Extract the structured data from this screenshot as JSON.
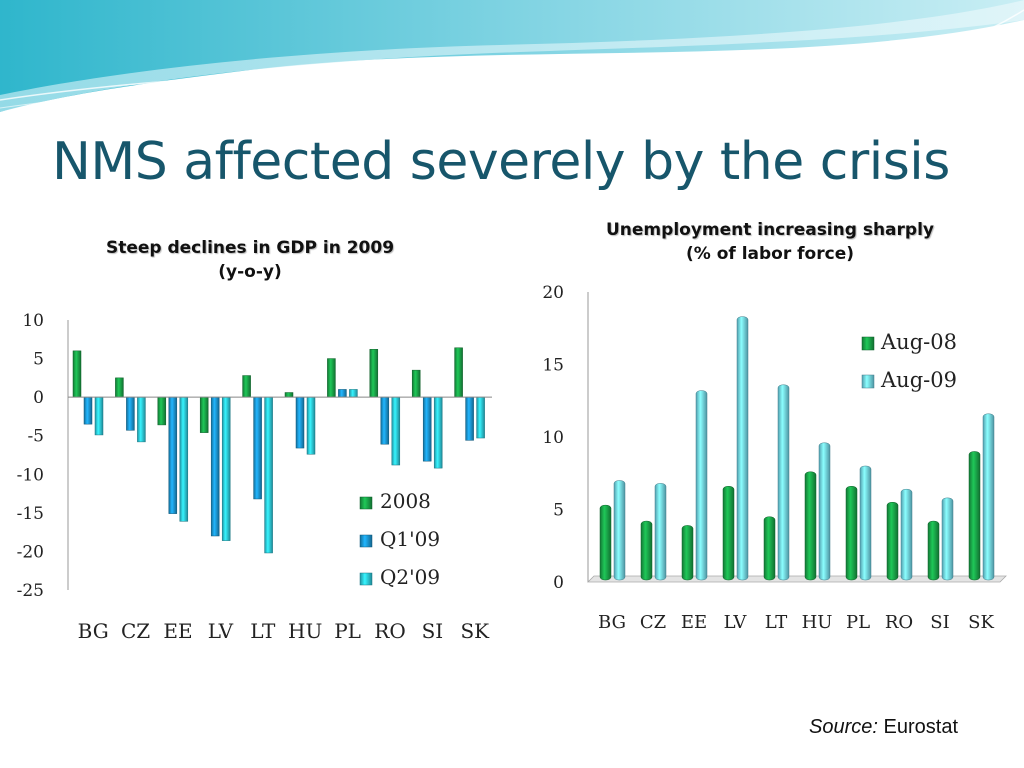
{
  "slide": {
    "title": "NMS affected severely by the crisis",
    "source_label": "Source:",
    "source_value": "Eurostat"
  },
  "colors": {
    "title": "#17566b",
    "green": "#19a046",
    "blue": "#1b92cc",
    "cyan": "#2cc4d8",
    "light_cyan": "#6fd4e8"
  },
  "chart_data": [
    {
      "type": "bar",
      "title": "Steep declines in GDP in 2009",
      "subtitle": "(y-o-y)",
      "categories": [
        "BG",
        "CZ",
        "EE",
        "LV",
        "LT",
        "HU",
        "PL",
        "RO",
        "SI",
        "SK"
      ],
      "series": [
        {
          "name": "2008",
          "color": "#19a046",
          "values": [
            6.0,
            2.5,
            -3.6,
            -4.6,
            2.8,
            0.6,
            5.0,
            6.2,
            3.5,
            6.4
          ]
        },
        {
          "name": "Q1'09",
          "color": "#1b92cc",
          "values": [
            -3.5,
            -4.3,
            -15.1,
            -18.0,
            -13.2,
            -6.6,
            1.0,
            -6.1,
            -8.3,
            -5.6
          ]
        },
        {
          "name": "Q2'09",
          "color": "#2cc4d8",
          "values": [
            -4.9,
            -5.8,
            -16.1,
            -18.6,
            -20.2,
            -7.4,
            1.0,
            -8.8,
            -9.2,
            -5.3
          ]
        }
      ],
      "ylim": [
        -25,
        10
      ],
      "yticks": [
        10,
        5,
        0,
        -5,
        -10,
        -15,
        -20,
        -25
      ],
      "legend": "right-bottom"
    },
    {
      "type": "bar",
      "title": "Unemployment increasing sharply",
      "subtitle": "(% of labor force)",
      "categories": [
        "BG",
        "CZ",
        "EE",
        "LV",
        "LT",
        "HU",
        "PL",
        "RO",
        "SI",
        "SK"
      ],
      "series": [
        {
          "name": "Aug-08",
          "color": "#19a046",
          "values": [
            5.3,
            4.2,
            3.9,
            6.6,
            4.5,
            7.6,
            6.6,
            5.5,
            4.2,
            9.0
          ]
        },
        {
          "name": "Aug-09",
          "color": "#6fd4e8",
          "values": [
            7.0,
            6.8,
            13.2,
            18.3,
            13.6,
            9.6,
            8.0,
            6.4,
            5.8,
            11.6
          ]
        }
      ],
      "ylim": [
        0,
        20
      ],
      "yticks": [
        20,
        15,
        10,
        5,
        0
      ],
      "legend": "top-right"
    }
  ]
}
